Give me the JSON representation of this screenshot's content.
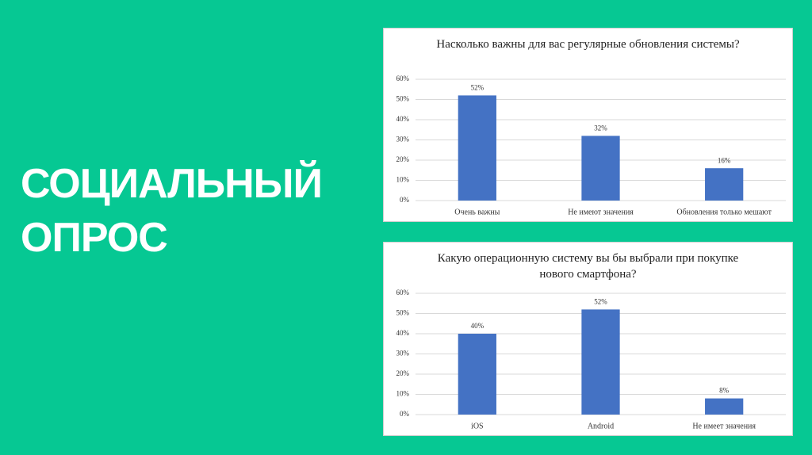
{
  "slide_title": "СОЦИАЛЬНЫЙ ОПРОС",
  "chart_data": [
    {
      "type": "bar",
      "title": "Насколько важны для вас регулярные обновления системы?",
      "categories": [
        "Очень важны",
        "Не имеют значения",
        "Обновления только мешают"
      ],
      "values": [
        52,
        32,
        16
      ],
      "value_labels": [
        "52%",
        "32%",
        "16%"
      ],
      "color": "#4472c4",
      "ylim": [
        0,
        60
      ],
      "yticks": [
        {
          "value": 0,
          "label": "0%"
        },
        {
          "value": 10,
          "label": "10%"
        },
        {
          "value": 20,
          "label": "20%"
        },
        {
          "value": 30,
          "label": "30%"
        },
        {
          "value": 40,
          "label": "40%"
        },
        {
          "value": 50,
          "label": "50%"
        },
        {
          "value": 60,
          "label": "60%"
        }
      ],
      "grid": true
    },
    {
      "type": "bar",
      "title": "Какую операционную систему вы бы выбрали при покупке нового смартфона?",
      "categories": [
        "iOS",
        "Android",
        "Не имеет значения"
      ],
      "values": [
        40,
        52,
        8
      ],
      "value_labels": [
        "40%",
        "52%",
        "8%"
      ],
      "color": "#4472c4",
      "ylim": [
        0,
        60
      ],
      "yticks": [
        {
          "value": 0,
          "label": "0%"
        },
        {
          "value": 10,
          "label": "10%"
        },
        {
          "value": 20,
          "label": "20%"
        },
        {
          "value": 30,
          "label": "30%"
        },
        {
          "value": 40,
          "label": "40%"
        },
        {
          "value": 50,
          "label": "50%"
        },
        {
          "value": 60,
          "label": "60%"
        }
      ],
      "grid": true
    }
  ]
}
